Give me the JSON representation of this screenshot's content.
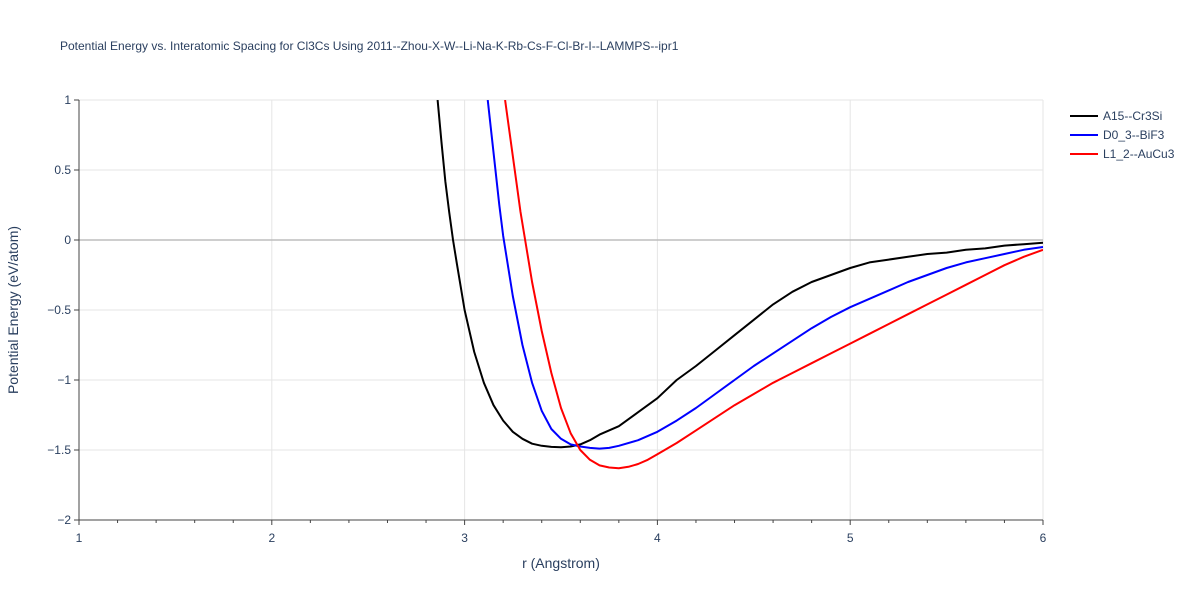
{
  "chart_data": {
    "type": "line",
    "title": "Potential Energy vs. Interatomic Spacing for Cl3Cs Using 2011--Zhou-X-W--Li-Na-K-Rb-Cs-F-Cl-Br-I--LAMMPS--ipr1",
    "xlabel": "r (Angstrom)",
    "ylabel": "Potential Energy (eV/atom)",
    "xlim": [
      1,
      6
    ],
    "ylim": [
      -2,
      1
    ],
    "x_ticks": [
      1,
      2,
      3,
      4,
      5,
      6
    ],
    "x_tick_labels": [
      "1",
      "2",
      "3",
      "4",
      "5",
      "6"
    ],
    "y_ticks": [
      -2,
      -1.5,
      -1,
      -0.5,
      0,
      0.5,
      1
    ],
    "y_tick_labels": [
      "−2",
      "−1.5",
      "−1",
      "−0.5",
      "0",
      "0.5",
      "1"
    ],
    "grid": true,
    "legend_position": "top-right",
    "series": [
      {
        "name": "A15--Cr3Si",
        "color": "#000000",
        "x": [
          2.86,
          2.88,
          2.9,
          2.92,
          2.94,
          2.96,
          3.0,
          3.05,
          3.1,
          3.15,
          3.2,
          3.25,
          3.3,
          3.35,
          3.4,
          3.45,
          3.5,
          3.55,
          3.6,
          3.65,
          3.7,
          3.8,
          3.9,
          4.0,
          4.1,
          4.2,
          4.3,
          4.4,
          4.5,
          4.6,
          4.7,
          4.8,
          4.9,
          5.0,
          5.1,
          5.2,
          5.3,
          5.4,
          5.5,
          5.6,
          5.7,
          5.8,
          5.9,
          6.0
        ],
        "y": [
          1.0,
          0.7,
          0.42,
          0.2,
          0.0,
          -0.17,
          -0.5,
          -0.8,
          -1.02,
          -1.18,
          -1.29,
          -1.37,
          -1.42,
          -1.455,
          -1.47,
          -1.478,
          -1.48,
          -1.475,
          -1.46,
          -1.43,
          -1.39,
          -1.33,
          -1.23,
          -1.13,
          -1.0,
          -0.9,
          -0.79,
          -0.68,
          -0.57,
          -0.46,
          -0.37,
          -0.3,
          -0.25,
          -0.2,
          -0.16,
          -0.14,
          -0.12,
          -0.1,
          -0.09,
          -0.07,
          -0.06,
          -0.04,
          -0.03,
          -0.02
        ]
      },
      {
        "name": "D0_3--BiF3",
        "color": "#0000ff",
        "x": [
          3.12,
          3.14,
          3.16,
          3.18,
          3.2,
          3.25,
          3.3,
          3.35,
          3.4,
          3.45,
          3.5,
          3.55,
          3.6,
          3.65,
          3.7,
          3.75,
          3.8,
          3.9,
          4.0,
          4.1,
          4.2,
          4.3,
          4.4,
          4.5,
          4.6,
          4.7,
          4.8,
          4.9,
          5.0,
          5.1,
          5.2,
          5.3,
          5.4,
          5.5,
          5.6,
          5.7,
          5.8,
          5.9,
          6.0
        ],
        "y": [
          1.0,
          0.75,
          0.5,
          0.25,
          0.03,
          -0.4,
          -0.75,
          -1.02,
          -1.22,
          -1.35,
          -1.42,
          -1.46,
          -1.475,
          -1.485,
          -1.49,
          -1.485,
          -1.47,
          -1.43,
          -1.37,
          -1.29,
          -1.2,
          -1.1,
          -1.0,
          -0.9,
          -0.81,
          -0.72,
          -0.63,
          -0.55,
          -0.48,
          -0.42,
          -0.36,
          -0.3,
          -0.25,
          -0.2,
          -0.16,
          -0.13,
          -0.1,
          -0.07,
          -0.05
        ]
      },
      {
        "name": "L1_2--AuCu3",
        "color": "#ff0000",
        "x": [
          3.21,
          3.23,
          3.25,
          3.27,
          3.29,
          3.32,
          3.35,
          3.4,
          3.45,
          3.5,
          3.55,
          3.6,
          3.65,
          3.7,
          3.75,
          3.8,
          3.85,
          3.9,
          3.95,
          4.0,
          4.1,
          4.2,
          4.3,
          4.4,
          4.5,
          4.6,
          4.7,
          4.8,
          4.9,
          5.0,
          5.1,
          5.2,
          5.3,
          5.4,
          5.5,
          5.6,
          5.7,
          5.8,
          5.9,
          6.0
        ],
        "y": [
          1.0,
          0.8,
          0.6,
          0.4,
          0.2,
          -0.05,
          -0.3,
          -0.65,
          -0.95,
          -1.2,
          -1.38,
          -1.5,
          -1.57,
          -1.61,
          -1.625,
          -1.63,
          -1.62,
          -1.6,
          -1.57,
          -1.53,
          -1.45,
          -1.36,
          -1.27,
          -1.18,
          -1.1,
          -1.02,
          -0.95,
          -0.88,
          -0.81,
          -0.74,
          -0.67,
          -0.6,
          -0.53,
          -0.46,
          -0.39,
          -0.32,
          -0.25,
          -0.18,
          -0.12,
          -0.07
        ]
      }
    ]
  }
}
